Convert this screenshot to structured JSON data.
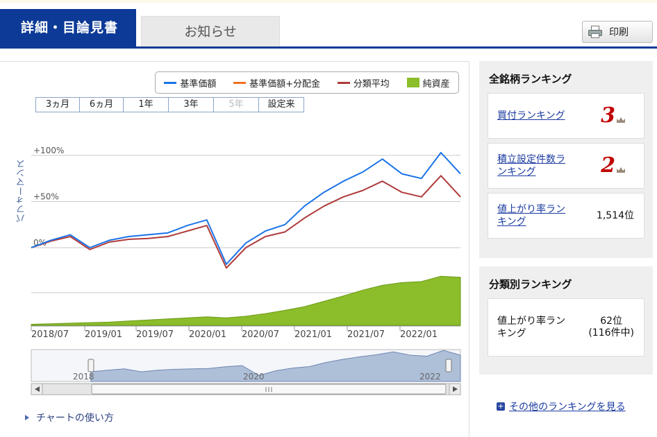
{
  "tabs": {
    "detail": "詳細・目論見書",
    "news": "お知らせ"
  },
  "print_button": {
    "label": "印刷",
    "icon": "printer-icon"
  },
  "chart": {
    "legend": [
      {
        "label": "基準価額",
        "color": "#1a73e8",
        "kind": "line"
      },
      {
        "label": "基準価額+分配金",
        "color": "#f07020",
        "kind": "line"
      },
      {
        "label": "分類平均",
        "color": "#b03a3a",
        "kind": "line"
      },
      {
        "label": "純資産",
        "color": "#8cbd2a",
        "kind": "area"
      }
    ],
    "ranges": [
      {
        "label": "3ヵ月",
        "enabled": true
      },
      {
        "label": "6ヵ月",
        "enabled": true
      },
      {
        "label": "1年",
        "enabled": true
      },
      {
        "label": "3年",
        "enabled": true
      },
      {
        "label": "5年",
        "enabled": false
      },
      {
        "label": "設定来",
        "enabled": true
      }
    ],
    "ylabel": "パフォーマンス"
  },
  "chart_data": {
    "type": "line",
    "yticks": [
      "+100%",
      "+50%",
      "0%"
    ],
    "ylim": [
      -20,
      110
    ],
    "xticks": [
      "2018/07",
      "2019/01",
      "2019/07",
      "2020/01",
      "2020/07",
      "2021/01",
      "2021/07",
      "2022/01"
    ],
    "x": [
      "2018/05",
      "2018/07",
      "2018/10",
      "2018/12",
      "2019/01",
      "2019/04",
      "2019/07",
      "2019/10",
      "2020/01",
      "2020/02",
      "2020/03",
      "2020/04",
      "2020/07",
      "2020/10",
      "2021/01",
      "2021/04",
      "2021/07",
      "2021/10",
      "2021/12",
      "2022/01",
      "2022/02",
      "2022/03",
      "2022/04"
    ],
    "series": [
      {
        "name": "基準価額",
        "color": "#1a73e8",
        "values": [
          0,
          8,
          14,
          0,
          8,
          12,
          14,
          16,
          24,
          30,
          -18,
          5,
          18,
          25,
          45,
          60,
          72,
          82,
          96,
          80,
          75,
          103,
          80
        ]
      },
      {
        "name": "分類平均",
        "color": "#b03a3a",
        "values": [
          0,
          7,
          12,
          -2,
          6,
          9,
          10,
          12,
          18,
          24,
          -22,
          0,
          12,
          17,
          32,
          45,
          55,
          62,
          72,
          60,
          55,
          78,
          55
        ]
      }
    ],
    "net_assets": [
      2,
      3,
      4,
      5,
      6,
      8,
      10,
      12,
      14,
      16,
      14,
      17,
      22,
      28,
      35,
      45,
      55,
      66,
      75,
      80,
      82,
      92,
      90
    ],
    "navigator_labels": [
      "2018",
      "2020",
      "2022"
    ]
  },
  "howto_link": "チャートの使い方",
  "all_ranking": {
    "title": "全銘柄ランキング",
    "items": [
      {
        "label": "買付ランキング",
        "value": "3"
      },
      {
        "label": "積立設定件数ランキング",
        "value": "2"
      },
      {
        "label": "値上がり率ランキング",
        "value": "1,514位"
      }
    ]
  },
  "category_ranking": {
    "title": "分類別ランキング",
    "label": "値上がり率ランキング",
    "value": "62位\n(116件中)"
  },
  "more_link": "その他のランキングを見る"
}
